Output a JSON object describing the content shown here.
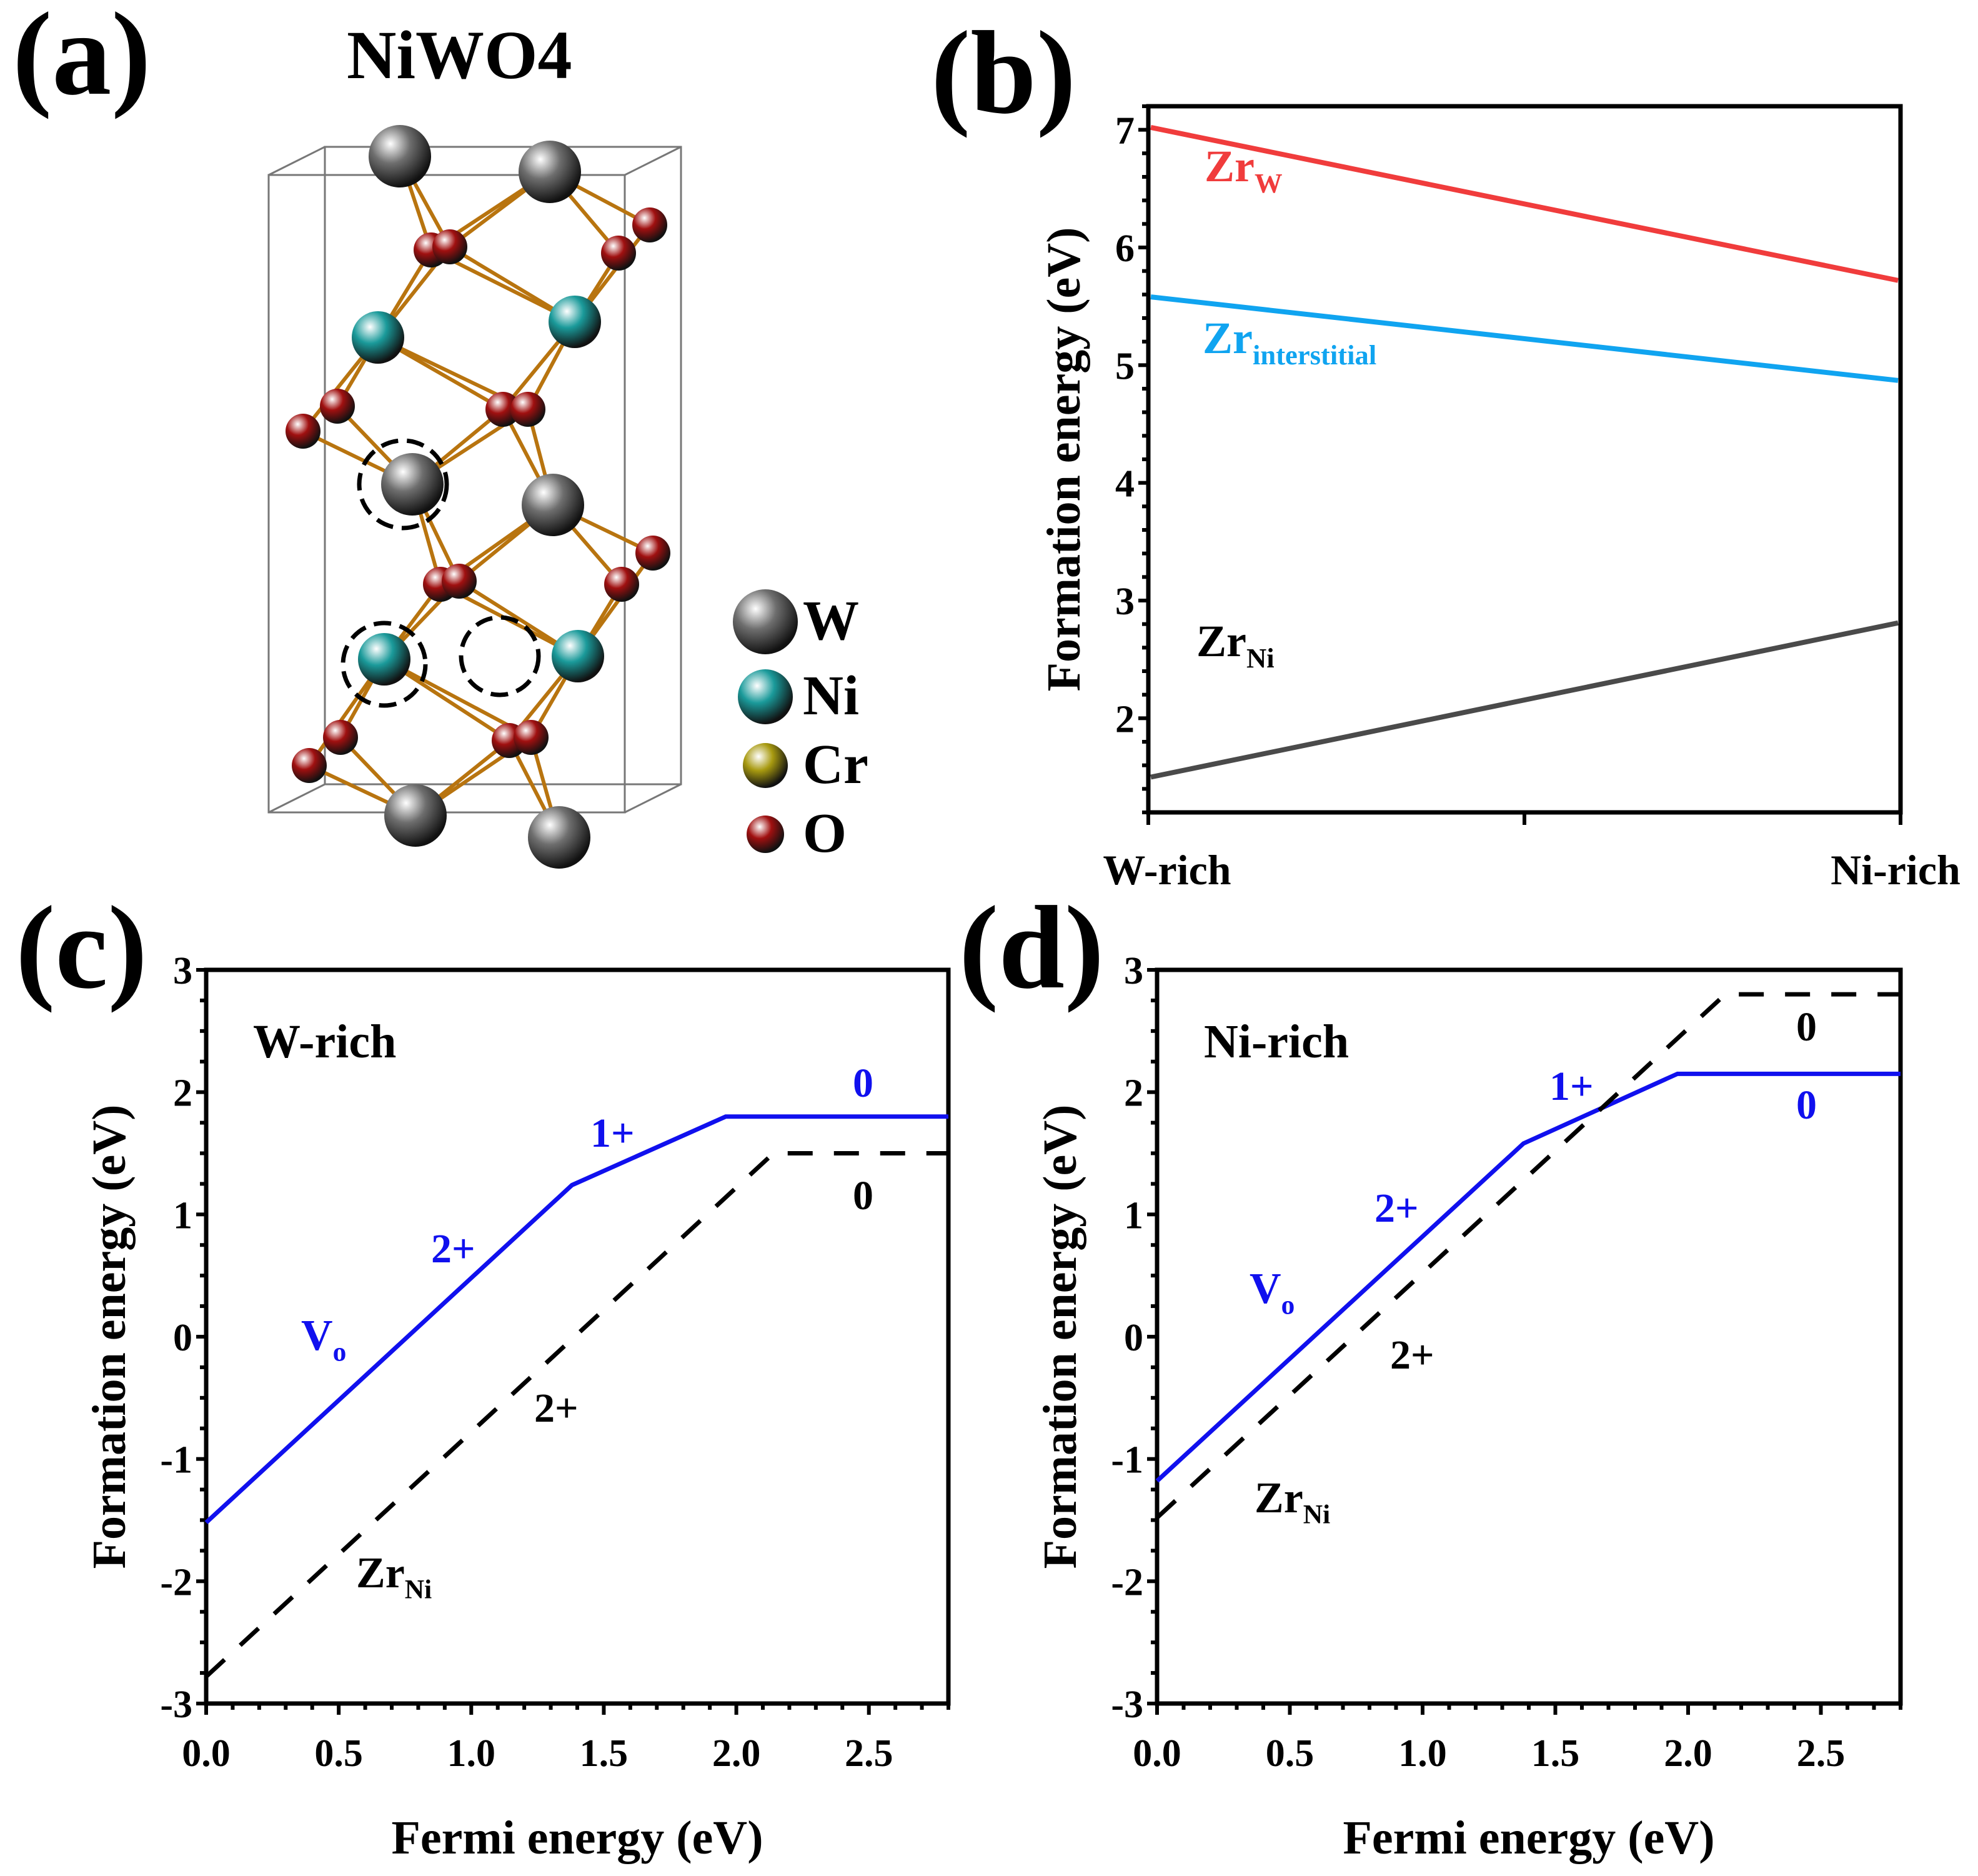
{
  "panel_labels": {
    "a": "(a)",
    "b": "(b)",
    "c": "(c)",
    "d": "(d)"
  },
  "structure": {
    "title": "NiWO4",
    "legend": [
      {
        "label": "W",
        "color": "#6e6e6e"
      },
      {
        "label": "Ni",
        "color": "#1a9a9a"
      },
      {
        "label": "Cr",
        "color": "#a89a10"
      },
      {
        "label": "O",
        "color": "#a01010"
      }
    ]
  },
  "chart_data": [
    {
      "id": "b",
      "type": "line",
      "xlabel": "",
      "ylabel": "Formation energy (eV)",
      "categories": [
        "W-rich",
        "Ni-rich"
      ],
      "ylim": [
        1.2,
        7.2
      ],
      "yticks": [
        2,
        3,
        4,
        5,
        6,
        7
      ],
      "series": [
        {
          "name": "ZrW",
          "main": "Zr",
          "sub": "W",
          "color": "#f03c3c",
          "values": [
            7.02,
            5.72
          ]
        },
        {
          "name": "Zrinterstitial",
          "main": "Zr",
          "sub": "interstitial",
          "color": "#10a4f0",
          "values": [
            5.58,
            4.87
          ]
        },
        {
          "name": "ZrNi",
          "main": "Zr",
          "sub": "Ni",
          "color": "#4a4a4a",
          "values": [
            1.5,
            2.81
          ]
        }
      ]
    },
    {
      "id": "c",
      "type": "line",
      "title": "W-rich",
      "xlabel": "Fermi energy (eV)",
      "ylabel": "Formation energy (eV)",
      "xlim": [
        0,
        2.8
      ],
      "ylim": [
        -3,
        3
      ],
      "xticks": [
        "0.0",
        "0.5",
        "1.0",
        "1.5",
        "2.0",
        "2.5"
      ],
      "yticks": [
        "-3",
        "-2",
        "-1",
        "0",
        "1",
        "2",
        "3"
      ],
      "series": [
        {
          "name": "Vo",
          "main": "V",
          "sub": "o",
          "color": "#1010ee",
          "dash": false,
          "points": [
            [
              0,
              -1.52
            ],
            [
              1.38,
              1.24
            ],
            [
              1.96,
              1.8
            ],
            [
              2.8,
              1.8
            ]
          ],
          "charge_labels": [
            "2+",
            "1+",
            "0"
          ]
        },
        {
          "name": "ZrNi",
          "main": "Zr",
          "sub": "Ni",
          "color": "#000000",
          "dash": true,
          "points": [
            [
              0,
              -2.78
            ],
            [
              2.14,
              1.5
            ],
            [
              2.8,
              1.5
            ]
          ],
          "charge_labels": [
            "2+",
            "0"
          ]
        }
      ]
    },
    {
      "id": "d",
      "type": "line",
      "title": "Ni-rich",
      "xlabel": "Fermi energy (eV)",
      "ylabel": "Formation energy (eV)",
      "xlim": [
        0,
        2.8
      ],
      "ylim": [
        -3,
        3
      ],
      "xticks": [
        "0.0",
        "0.5",
        "1.0",
        "1.5",
        "2.0",
        "2.5"
      ],
      "yticks": [
        "-3",
        "-2",
        "-1",
        "0",
        "1",
        "2",
        "3"
      ],
      "series": [
        {
          "name": "Vo",
          "main": "V",
          "sub": "o",
          "color": "#1010ee",
          "dash": false,
          "points": [
            [
              0,
              -1.18
            ],
            [
              1.38,
              1.58
            ],
            [
              1.96,
              2.15
            ],
            [
              2.8,
              2.15
            ]
          ],
          "charge_labels": [
            "2+",
            "1+",
            "0"
          ]
        },
        {
          "name": "ZrNi",
          "main": "Zr",
          "sub": "Ni",
          "color": "#000000",
          "dash": true,
          "points": [
            [
              0,
              -1.48
            ],
            [
              2.14,
              2.8
            ],
            [
              2.8,
              2.8
            ]
          ],
          "charge_labels": [
            "2+",
            "0"
          ]
        }
      ]
    }
  ]
}
